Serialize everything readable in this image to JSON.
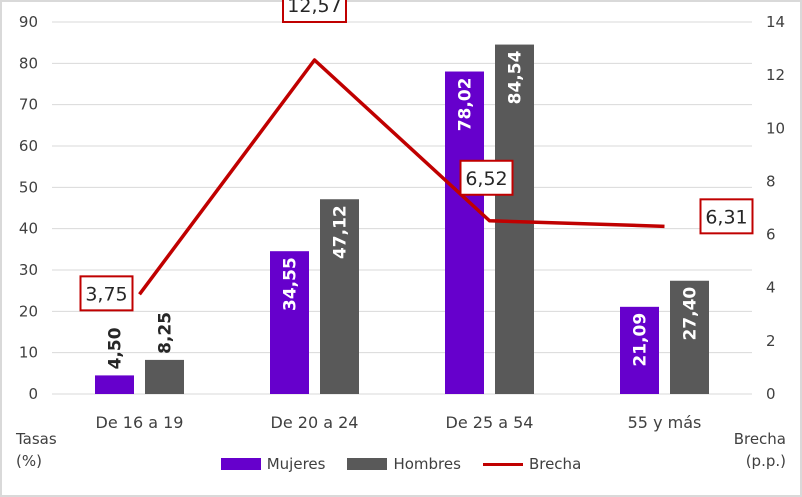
{
  "chart_data": {
    "type": "bar",
    "categories": [
      "De 16 a 19",
      "De 20 a 24",
      "De 25 a 54",
      "55 y más"
    ],
    "series": [
      {
        "name": "Mujeres",
        "type": "bar",
        "axis": "left",
        "color": "#6600CC",
        "values": [
          4.5,
          34.55,
          78.02,
          21.09
        ],
        "labels": [
          "4,50",
          "34,55",
          "78,02",
          "21,09"
        ]
      },
      {
        "name": "Hombres",
        "type": "bar",
        "axis": "left",
        "color": "#595959",
        "values": [
          8.25,
          47.12,
          84.54,
          27.4
        ],
        "labels": [
          "8,25",
          "47,12",
          "84,54",
          "27,40"
        ]
      },
      {
        "name": "Brecha",
        "type": "line",
        "axis": "right",
        "color": "#C00000",
        "values": [
          3.75,
          12.57,
          6.52,
          6.31
        ],
        "labels": [
          "3,75",
          "12,57",
          "6,52",
          "6,31"
        ]
      }
    ],
    "ylabel": "Tasas\n(%)",
    "ylabel_lines": [
      "Tasas",
      "(%)"
    ],
    "y2label_lines": [
      "Brecha",
      "(p.p.)"
    ],
    "ylim": [
      0,
      90
    ],
    "yticks": [
      0,
      10,
      20,
      30,
      40,
      50,
      60,
      70,
      80,
      90
    ],
    "y2lim": [
      0,
      14
    ],
    "y2ticks": [
      0,
      2,
      4,
      6,
      8,
      10,
      12,
      14
    ],
    "grid": true,
    "legend_position": "bottom"
  }
}
